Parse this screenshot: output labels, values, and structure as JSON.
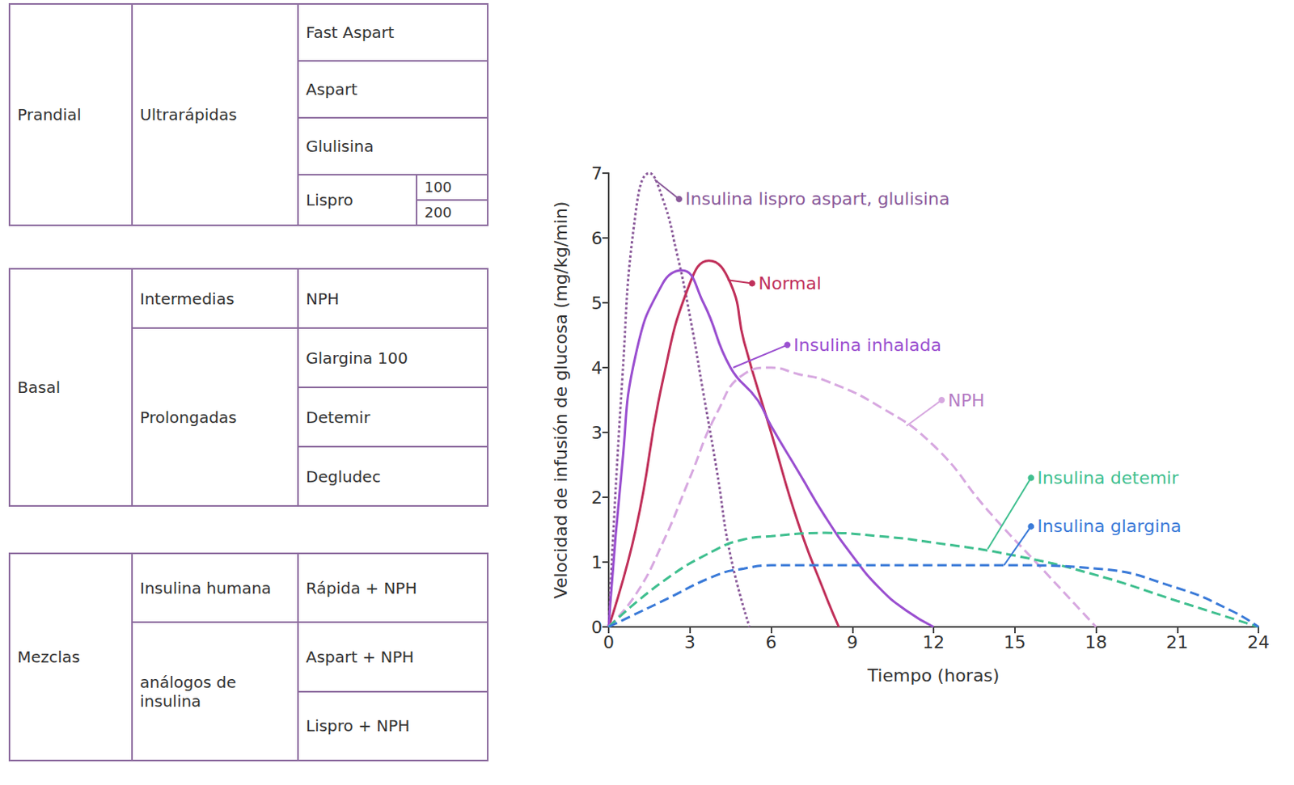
{
  "chart_data": {
    "type": "line",
    "x_label": "Tiempo (horas)",
    "y_label": "Velocidad de infusión de glucosa (mg/kg/min)",
    "xlim": [
      0,
      24
    ],
    "xticks": [
      0,
      3,
      6,
      9,
      12,
      15,
      18,
      21,
      24
    ],
    "ylim": [
      0,
      7
    ],
    "yticks": [
      0,
      1,
      2,
      3,
      4,
      5,
      6,
      7
    ],
    "grid": false,
    "series": [
      {
        "name": "Insulina lispro aspart, glulisina",
        "color": "#8a5a9a",
        "line_style": "dotted",
        "x": [
          0,
          0.5,
          1,
          1.5,
          2,
          2.5,
          3,
          3.5,
          4,
          4.5,
          5.2
        ],
        "values": [
          0,
          3.8,
          6.4,
          7,
          6.6,
          5.8,
          4.8,
          3.6,
          2.4,
          1.1,
          0
        ]
      },
      {
        "name": "Normal",
        "color": "#c0305a",
        "line_style": "solid",
        "x": [
          0,
          1,
          2,
          3,
          3.7,
          4.5,
          5,
          6,
          7,
          8,
          8.5
        ],
        "values": [
          0,
          1.5,
          3.8,
          5.3,
          5.65,
          5.3,
          4.4,
          3.0,
          1.6,
          0.5,
          0
        ]
      },
      {
        "name": "Insulina inhalada",
        "color": "#9a4fd0",
        "line_style": "solid",
        "x": [
          0,
          0.5,
          1,
          2,
          2.7,
          3.5,
          4.5,
          5.5,
          6,
          7,
          8,
          9,
          10,
          11,
          12
        ],
        "values": [
          0,
          2.5,
          4.2,
          5.3,
          5.5,
          5.0,
          4.0,
          3.5,
          3.1,
          2.4,
          1.7,
          1.1,
          0.6,
          0.25,
          0
        ]
      },
      {
        "name": "NPH",
        "color": "#d7a8e0",
        "line_style": "dashed",
        "x": [
          0,
          1,
          2,
          3,
          4,
          5,
          6,
          7,
          8,
          10,
          12,
          14,
          16,
          18
        ],
        "values": [
          0,
          0.5,
          1.3,
          2.3,
          3.3,
          3.9,
          4.0,
          3.9,
          3.8,
          3.4,
          2.8,
          1.8,
          0.9,
          0
        ]
      },
      {
        "name": "Insulina detemir",
        "color": "#3fbf8f",
        "line_style": "dashed",
        "x": [
          0,
          2,
          4,
          5,
          6,
          8,
          10,
          12,
          15,
          18,
          21,
          24
        ],
        "values": [
          0,
          0.7,
          1.2,
          1.35,
          1.4,
          1.45,
          1.4,
          1.3,
          1.1,
          0.8,
          0.4,
          0
        ]
      },
      {
        "name": "Insulina glargina",
        "color": "#3a7ad8",
        "line_style": "dashed",
        "x": [
          0,
          2,
          4,
          5,
          6,
          9,
          12,
          15,
          18,
          21,
          23,
          24
        ],
        "values": [
          0,
          0.4,
          0.8,
          0.9,
          0.95,
          0.95,
          0.95,
          0.95,
          0.9,
          0.6,
          0.25,
          0
        ]
      }
    ]
  },
  "tables": [
    {
      "group": "Prandial",
      "subgroups": [
        {
          "name": "Ultrarápidas",
          "items": [
            {
              "name": "Fast Aspart"
            },
            {
              "name": "Aspart"
            },
            {
              "name": "Glulisina"
            },
            {
              "name": "Lispro",
              "variants": [
                100,
                200
              ]
            }
          ]
        }
      ]
    },
    {
      "group": "Basal",
      "subgroups": [
        {
          "name": "Intermedias",
          "items": [
            {
              "name": "NPH"
            }
          ]
        },
        {
          "name": "Prolongadas",
          "items": [
            {
              "name": "Glargina 100"
            },
            {
              "name": "Detemir"
            },
            {
              "name": "Degludec"
            }
          ]
        }
      ]
    },
    {
      "group": "Mezclas",
      "subgroups": [
        {
          "name": "Insulina humana",
          "items": [
            {
              "name": "Rápida + NPH"
            }
          ]
        },
        {
          "name": "análogos de insulina",
          "items": [
            {
              "name": "Aspart + NPH"
            },
            {
              "name": "Lispro + NPH"
            }
          ]
        }
      ]
    }
  ]
}
